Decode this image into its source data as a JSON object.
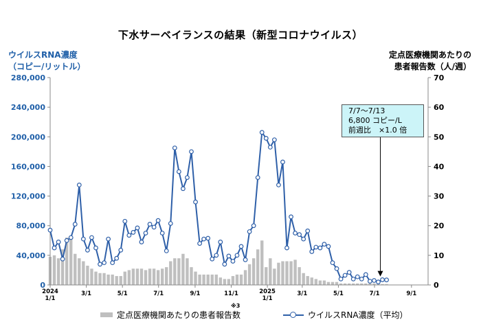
{
  "title": "下水サーベイランスの結果（新型コロナウイルス）",
  "left_axis_label": [
    "ウイルスRNA濃度",
    "（コピー/リットル）"
  ],
  "right_axis_label": [
    "定点医療機関あたりの",
    "患者報告数（人/週）"
  ],
  "note_mark": "※3",
  "annotation": {
    "lines": [
      "7/7～7/13",
      "6,800 コピー/L",
      "前週比　×1.0 倍"
    ]
  },
  "legend": {
    "bar_label": "定点医療機関あたりの患者報告数",
    "line_label": "ウイルスRNA濃度（平均）"
  },
  "colors": {
    "line": "#2e5fa8",
    "bar": "#bfbfbf",
    "axis_left_text": "#1f5fa8"
  },
  "chart_data": {
    "type": "bar+line",
    "x_tick_labels": [
      {
        "week": 0,
        "lines": [
          "2024",
          "1/1"
        ]
      },
      {
        "week": 8.7,
        "lines": [
          "3/1"
        ]
      },
      {
        "week": 17.4,
        "lines": [
          "5/1"
        ]
      },
      {
        "week": 26.1,
        "lines": [
          "7/1"
        ]
      },
      {
        "week": 34.9,
        "lines": [
          "9/1"
        ]
      },
      {
        "week": 43.6,
        "lines": [
          "11/1"
        ]
      },
      {
        "week": 52.3,
        "lines": [
          "2025",
          "1/1"
        ]
      },
      {
        "week": 60.7,
        "lines": [
          "3/1"
        ]
      },
      {
        "week": 69.4,
        "lines": [
          "5/1"
        ]
      },
      {
        "week": 78.1,
        "lines": [
          "7/1"
        ]
      },
      {
        "week": 87.0,
        "lines": [
          "9/1"
        ]
      }
    ],
    "x_range": [
      0,
      91
    ],
    "left_axis": {
      "min": 0,
      "max": 280000,
      "ticks": [
        "0",
        "40,000",
        "80,000",
        "120,000",
        "160,000",
        "200,000",
        "240,000",
        "280,000"
      ]
    },
    "right_axis": {
      "min": 0,
      "max": 70,
      "ticks": [
        "0",
        "10",
        "20",
        "30",
        "40",
        "50",
        "60",
        "70"
      ]
    },
    "grid": false,
    "series": [
      {
        "type": "line",
        "axis": "left",
        "values": [
          74000,
          50000,
          58000,
          35000,
          60000,
          64000,
          82000,
          135000,
          62000,
          47000,
          64000,
          50000,
          28000,
          30000,
          62000,
          30000,
          36000,
          47000,
          86000,
          67000,
          71000,
          77000,
          58000,
          70000,
          82000,
          78000,
          87000,
          70000,
          46000,
          83000,
          185000,
          153000,
          130000,
          145000,
          180000,
          112000,
          56000,
          62000,
          63000,
          35000,
          40000,
          58000,
          28000,
          39000,
          32000,
          40000,
          52000,
          34000,
          72000,
          80000,
          145000,
          206000,
          198000,
          186000,
          196000,
          135000,
          166000,
          50000,
          92000,
          70000,
          68000,
          62000,
          73000,
          45000,
          51000,
          50000,
          55000,
          52000,
          30000,
          22000,
          8000,
          13000,
          17000,
          8000,
          11000,
          8000,
          14000,
          5000,
          6000,
          4000,
          7000,
          6800
        ]
      },
      {
        "type": "bar",
        "axis": "right",
        "values": [
          9.5,
          10,
          9,
          12,
          16,
          16.5,
          10.5,
          9,
          8,
          6.5,
          5.5,
          4.5,
          4,
          4,
          3.5,
          3.5,
          3,
          3,
          4.5,
          5,
          5.5,
          5.5,
          5.5,
          5,
          5.5,
          5.5,
          5,
          5.5,
          6,
          8,
          9,
          9,
          10.5,
          9,
          6,
          4.5,
          3.5,
          3.5,
          3.5,
          3.5,
          3.5,
          2.5,
          2,
          2,
          3,
          3.5,
          3.5,
          5,
          7,
          9,
          12,
          15,
          6,
          9,
          5.5,
          7.5,
          8,
          8,
          8,
          8.5,
          6,
          4,
          3,
          2.5,
          2,
          1.5,
          1.5,
          1,
          1,
          1,
          0.5,
          0.5,
          0.5,
          0.5,
          0.5,
          0.5,
          0.5,
          0.5,
          0.5,
          0.3,
          0.3,
          0.3
        ]
      }
    ],
    "annotated_point_index": 81
  }
}
